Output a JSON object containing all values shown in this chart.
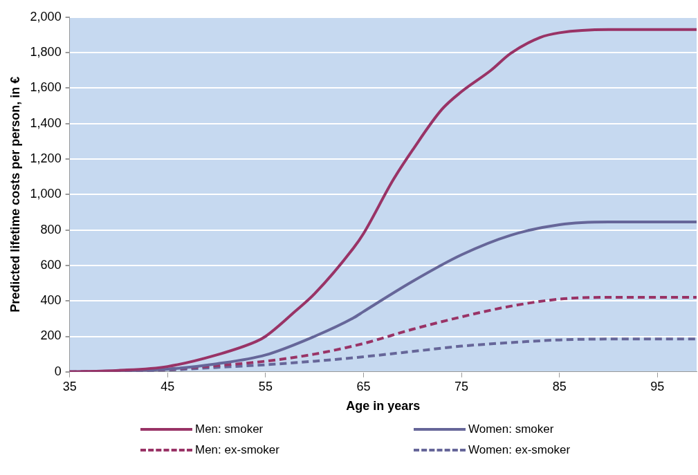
{
  "chart_data": {
    "type": "line",
    "xlabel": "Age in years",
    "ylabel": "Predicted lifetime costs per person, in €",
    "xlim": [
      35,
      99
    ],
    "xticks": [
      35,
      45,
      55,
      65,
      75,
      85,
      95
    ],
    "ylim": [
      0,
      2000
    ],
    "yticks": [
      0,
      200,
      400,
      600,
      800,
      {
        "value": 1000,
        "label": "1,000"
      },
      {
        "value": 1200,
        "label": "1,200"
      },
      {
        "value": 1400,
        "label": "1,400"
      },
      {
        "value": 1600,
        "label": "1,600"
      },
      {
        "value": 1800,
        "label": "1,800"
      },
      {
        "value": 2000,
        "label": "2,000"
      }
    ],
    "grid": "y",
    "legend": "bottom",
    "marker": "none",
    "series": [
      {
        "name": "Men: smoker",
        "color": "#993366",
        "line_style": "solid",
        "x": [
          35,
          40,
          45,
          50,
          54,
          55,
          58,
          60,
          64,
          65,
          68,
          70,
          73,
          75,
          78,
          80,
          83,
          85,
          90,
          99
        ],
        "values": [
          0,
          8,
          30,
          95,
          170,
          200,
          340,
          440,
          700,
          780,
          1080,
          1250,
          1480,
          1580,
          1700,
          1795,
          1885,
          1912,
          1930,
          1930
        ]
      },
      {
        "name": "Women: smoker",
        "color": "#666699",
        "line_style": "solid",
        "x": [
          35,
          40,
          45,
          50,
          55,
          60,
          64,
          65,
          70,
          75,
          80,
          85,
          90,
          99
        ],
        "values": [
          0,
          5,
          15,
          45,
          95,
          200,
          305,
          340,
          510,
          660,
          770,
          830,
          845,
          845
        ]
      },
      {
        "name": "Men: ex-smoker",
        "color": "#993366",
        "line_style": "dashed",
        "x": [
          35,
          40,
          45,
          50,
          55,
          60,
          65,
          70,
          75,
          80,
          85,
          90,
          99
        ],
        "values": [
          0,
          4,
          15,
          35,
          60,
          100,
          160,
          240,
          310,
          370,
          410,
          420,
          420
        ]
      },
      {
        "name": "Women: ex-smoker",
        "color": "#666699",
        "line_style": "dashed",
        "x": [
          35,
          40,
          45,
          50,
          55,
          60,
          65,
          70,
          75,
          80,
          85,
          90,
          99
        ],
        "values": [
          0,
          3,
          10,
          25,
          40,
          60,
          85,
          115,
          145,
          165,
          180,
          185,
          185
        ]
      }
    ]
  }
}
